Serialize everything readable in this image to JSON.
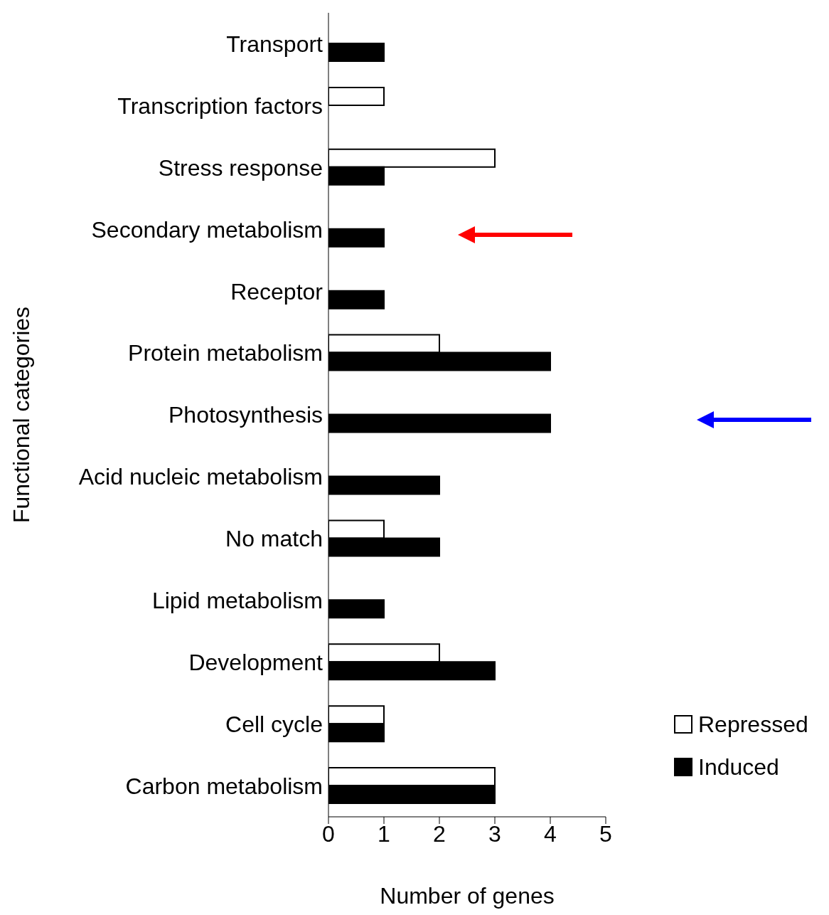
{
  "chart_data": {
    "type": "bar",
    "orientation": "horizontal",
    "xlabel": "Number of genes",
    "ylabel": "Functional categories",
    "categories": [
      "Transport",
      "Transcription factors",
      "Stress response",
      "Secondary metabolism",
      "Receptor",
      "Protein metabolism",
      "Photosynthesis",
      "Acid nucleic metabolism",
      "No match",
      "Lipid metabolism",
      "Development",
      "Cell cycle",
      "Carbon metabolism"
    ],
    "series": [
      {
        "name": "Repressed",
        "color": "#ffffff",
        "values": [
          0,
          1,
          3,
          0,
          0,
          2,
          0,
          0,
          1,
          0,
          2,
          1,
          3
        ]
      },
      {
        "name": "Induced",
        "color": "#000000",
        "values": [
          1,
          0,
          1,
          1,
          1,
          4,
          4,
          2,
          2,
          1,
          3,
          1,
          3
        ]
      }
    ],
    "xlim": [
      0,
      5
    ],
    "xticks": [
      0,
      1,
      2,
      3,
      4,
      5
    ],
    "grid": false,
    "legend": "bottom right"
  }
}
